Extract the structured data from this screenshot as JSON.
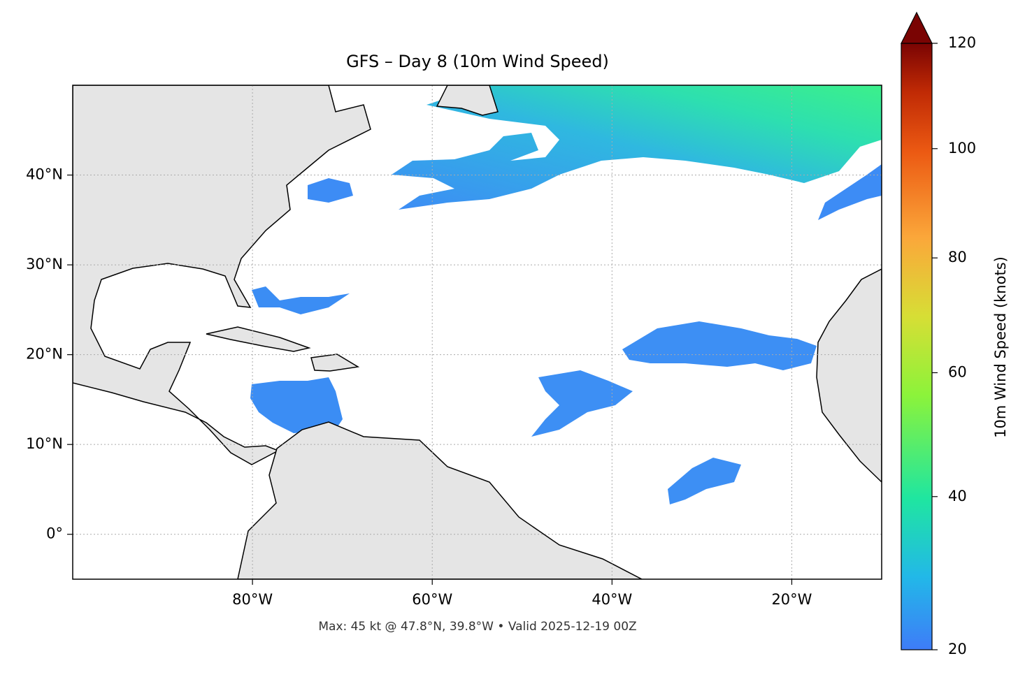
{
  "chart_data": {
    "type": "map",
    "title": "GFS – Day 8 (10m Wind Speed)",
    "footnote": "Max: 45 kt @ 47.8°N, 39.8°W • Valid 2025-12-19 00Z",
    "xlim": [
      -100,
      -10
    ],
    "ylim": [
      -5,
      50
    ],
    "xticks": [
      {
        "value": -80,
        "label": "80°W"
      },
      {
        "value": -60,
        "label": "60°W"
      },
      {
        "value": -40,
        "label": "40°W"
      },
      {
        "value": -20,
        "label": "20°W"
      }
    ],
    "yticks": [
      {
        "value": 0,
        "label": "0°"
      },
      {
        "value": 10,
        "label": "10°N"
      },
      {
        "value": 20,
        "label": "20°N"
      },
      {
        "value": 30,
        "label": "30°N"
      },
      {
        "value": 40,
        "label": "40°N"
      }
    ],
    "grid": true,
    "colorbar": {
      "label": "10m Wind Speed (knots)",
      "lim": [
        20,
        120
      ],
      "ticks": [
        20,
        40,
        60,
        80,
        100,
        120
      ],
      "gamma": 0.855,
      "extend": "max"
    }
  }
}
